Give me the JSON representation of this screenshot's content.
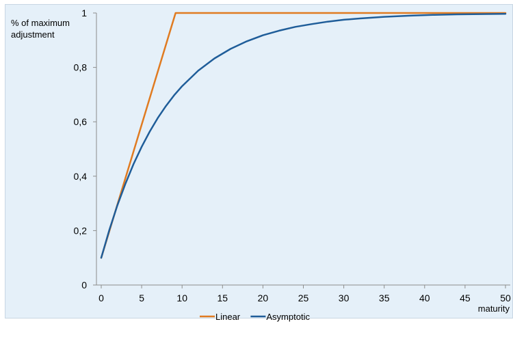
{
  "chart_data": {
    "type": "line",
    "title": "",
    "ylabel": [
      "% of maximum",
      "adjustment"
    ],
    "xlabel": "maturity",
    "xlim": [
      0,
      50
    ],
    "ylim": [
      0,
      1
    ],
    "x_ticks": [
      0,
      5,
      10,
      15,
      20,
      25,
      30,
      35,
      40,
      45,
      50
    ],
    "y_ticks": [
      {
        "value": 0,
        "label": "0"
      },
      {
        "value": 0.2,
        "label": "0,2"
      },
      {
        "value": 0.4,
        "label": "0,4"
      },
      {
        "value": 0.6,
        "label": "0,6"
      },
      {
        "value": 0.8,
        "label": "0,8"
      },
      {
        "value": 1,
        "label": "1"
      }
    ],
    "grid": false,
    "legend_position": "bottom",
    "series": [
      {
        "name": "Linear",
        "color": "#e07b21",
        "x": [
          0,
          9.2,
          50
        ],
        "y": [
          0.1,
          1.0,
          1.0
        ]
      },
      {
        "name": "Asymptotic",
        "color": "#1f5d99",
        "x": [
          0,
          1,
          2,
          3,
          4,
          5,
          6,
          7,
          8,
          9,
          10,
          12,
          14,
          16,
          18,
          20,
          22,
          24,
          26,
          28,
          30,
          32,
          35,
          38,
          41,
          44,
          47,
          50
        ],
        "y": [
          0.1,
          0.202,
          0.293,
          0.373,
          0.445,
          0.508,
          0.564,
          0.614,
          0.658,
          0.697,
          0.731,
          0.788,
          0.833,
          0.868,
          0.896,
          0.918,
          0.935,
          0.949,
          0.959,
          0.968,
          0.975,
          0.98,
          0.986,
          0.99,
          0.993,
          0.995,
          0.996,
          0.997
        ]
      }
    ]
  }
}
